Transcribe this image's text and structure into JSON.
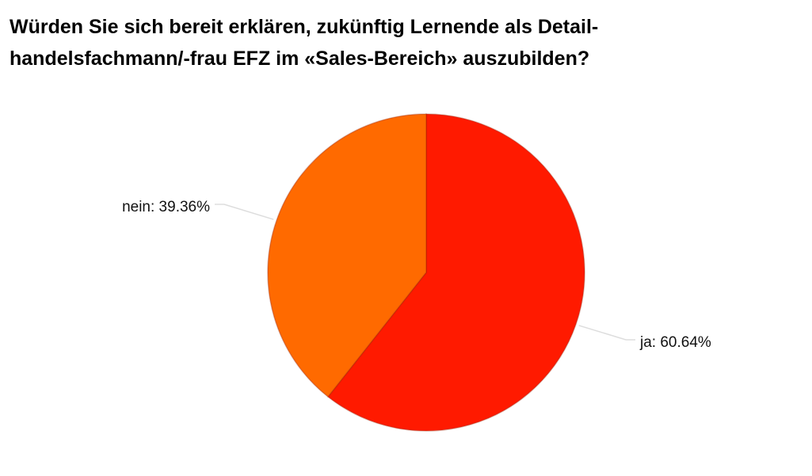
{
  "chart_data": {
    "type": "pie",
    "title": [
      "Würden Sie sich bereit erklären, zukünftig Lernende als Detail-",
      "handelsfachmann/-frau EFZ im «Sales-Bereich» auszubilden?"
    ],
    "values": [
      60.64,
      39.36
    ],
    "value_labels": [
      "ja: 60.64%",
      "nein: 39.36%"
    ],
    "colors": [
      "#ff1a00",
      "#ff6a00"
    ]
  }
}
